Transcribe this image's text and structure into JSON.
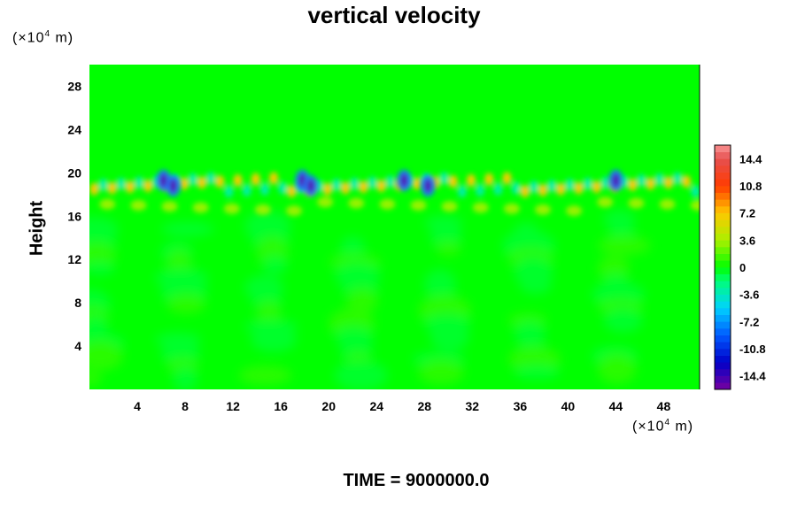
{
  "chart_data": {
    "type": "heatmap",
    "title": "vertical velocity",
    "xlabel": "",
    "ylabel": "Height",
    "x_units": "(×10⁴ m)",
    "y_units": "(×10⁴ m)",
    "xlim": [
      0,
      51
    ],
    "ylim": [
      0,
      30
    ],
    "x_ticks": [
      4,
      8,
      12,
      16,
      20,
      24,
      28,
      32,
      36,
      40,
      44,
      48
    ],
    "y_ticks": [
      4,
      8,
      12,
      16,
      20,
      24,
      28
    ],
    "colorbar": {
      "range": [
        -16.2,
        16.2
      ],
      "ticks": [
        "14.4",
        "10.8",
        "7.2",
        "3.6",
        "0",
        "-3.6",
        "-7.2",
        "-10.8",
        "-14.4"
      ],
      "tick_values": [
        14.4,
        10.8,
        7.2,
        3.6,
        0,
        -3.6,
        -7.2,
        -10.8,
        -14.4
      ],
      "levels": 36
    },
    "field_description_values": {
      "background": 0,
      "wave_layer_height_range": [
        16,
        20
      ],
      "strong_downdrafts_x": [
        6.2,
        7,
        17.8,
        18.5,
        26.3,
        28.3,
        44
      ]
    },
    "footer": "TIME = 9000000.0"
  }
}
